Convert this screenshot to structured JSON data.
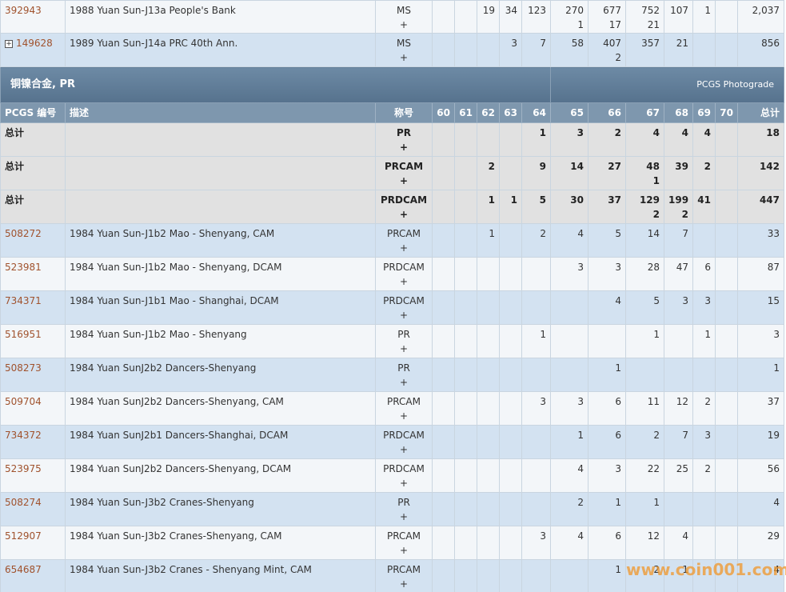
{
  "top_rows": [
    {
      "pcgs": "392943",
      "description": "1988 Yuan Sun-J13a People's Bank",
      "designation": "MS",
      "designation_plus": "+",
      "grades": [
        null,
        null,
        19,
        34,
        123,
        {
          "count": 270,
          "plus": 1
        },
        {
          "count": 677,
          "plus": 17
        },
        {
          "count": 752,
          "plus": 21
        },
        107,
        1,
        null,
        "2,037"
      ]
    },
    {
      "pcgs": "149628",
      "expandable": true,
      "description": "1989 Yuan Sun-J14a PRC 40th Ann.",
      "designation": "MS",
      "designation_plus": "+",
      "grades": [
        null,
        null,
        null,
        3,
        7,
        58,
        {
          "count": 407,
          "plus": 2
        },
        357,
        21,
        null,
        null,
        856
      ]
    }
  ],
  "section": {
    "title": "铜镍合金, PR",
    "link": "PCGS Photograde"
  },
  "header": [
    "PCGS 编号",
    "描述",
    "称号",
    "60",
    "61",
    "62",
    "63",
    "64",
    "65",
    "66",
    "67",
    "68",
    "69",
    "70",
    "总计"
  ],
  "rows": [
    {
      "pcgs": "总计",
      "total": true,
      "designation": "PR",
      "designation_plus": "+",
      "grades": [
        null,
        null,
        null,
        null,
        1,
        3,
        2,
        4,
        4,
        4,
        null,
        18
      ]
    },
    {
      "pcgs": "总计",
      "total": true,
      "designation": "PRCAM",
      "designation_plus": "+",
      "grades": [
        null,
        null,
        2,
        null,
        9,
        14,
        27,
        {
          "count": 48,
          "plus": 1
        },
        39,
        2,
        null,
        142
      ]
    },
    {
      "pcgs": "总计",
      "total": true,
      "designation": "PRDCAM",
      "designation_plus": "+",
      "grades": [
        null,
        null,
        1,
        1,
        5,
        30,
        37,
        {
          "count": 129,
          "plus": 2
        },
        {
          "count": 199,
          "plus": 2
        },
        41,
        null,
        447
      ]
    },
    {
      "pcgs": "508272",
      "description": "1984 Yuan Sun-J1b2 Mao - Shenyang, CAM",
      "designation": "PRCAM",
      "designation_plus": "+",
      "grades": [
        null,
        null,
        1,
        null,
        2,
        4,
        5,
        14,
        7,
        null,
        null,
        33
      ]
    },
    {
      "pcgs": "523981",
      "description": "1984 Yuan Sun-J1b2 Mao - Shenyang, DCAM",
      "designation": "PRDCAM",
      "designation_plus": "+",
      "grades": [
        null,
        null,
        null,
        null,
        null,
        3,
        3,
        28,
        47,
        6,
        null,
        87
      ]
    },
    {
      "pcgs": "734371",
      "description": "1984 Yuan Sun-J1b1 Mao - Shanghai, DCAM",
      "designation": "PRDCAM",
      "designation_plus": "+",
      "grades": [
        null,
        null,
        null,
        null,
        null,
        null,
        4,
        5,
        3,
        3,
        null,
        15
      ]
    },
    {
      "pcgs": "516951",
      "description": "1984 Yuan Sun-J1b2 Mao - Shenyang",
      "designation": "PR",
      "designation_plus": "+",
      "grades": [
        null,
        null,
        null,
        null,
        1,
        null,
        null,
        1,
        null,
        1,
        null,
        3
      ]
    },
    {
      "pcgs": "508273",
      "description": "1984 Yuan SunJ2b2 Dancers-Shenyang",
      "designation": "PR",
      "designation_plus": "+",
      "grades": [
        null,
        null,
        null,
        null,
        null,
        null,
        1,
        null,
        null,
        null,
        null,
        1
      ]
    },
    {
      "pcgs": "509704",
      "description": "1984 Yuan SunJ2b2 Dancers-Shenyang, CAM",
      "designation": "PRCAM",
      "designation_plus": "+",
      "grades": [
        null,
        null,
        null,
        null,
        3,
        3,
        6,
        11,
        12,
        2,
        null,
        37
      ]
    },
    {
      "pcgs": "734372",
      "description": "1984 Yuan SunJ2b1 Dancers-Shanghai, DCAM",
      "designation": "PRDCAM",
      "designation_plus": "+",
      "grades": [
        null,
        null,
        null,
        null,
        null,
        1,
        6,
        2,
        7,
        3,
        null,
        19
      ]
    },
    {
      "pcgs": "523975",
      "description": "1984 Yuan SunJ2b2 Dancers-Shenyang, DCAM",
      "designation": "PRDCAM",
      "designation_plus": "+",
      "grades": [
        null,
        null,
        null,
        null,
        null,
        4,
        3,
        22,
        25,
        2,
        null,
        56
      ]
    },
    {
      "pcgs": "508274",
      "description": "1984 Yuan Sun-J3b2 Cranes-Shenyang",
      "designation": "PR",
      "designation_plus": "+",
      "grades": [
        null,
        null,
        null,
        null,
        null,
        2,
        1,
        1,
        null,
        null,
        null,
        4
      ]
    },
    {
      "pcgs": "512907",
      "description": "1984 Yuan Sun-J3b2 Cranes-Shenyang, CAM",
      "designation": "PRCAM",
      "designation_plus": "+",
      "grades": [
        null,
        null,
        null,
        null,
        3,
        4,
        6,
        12,
        4,
        null,
        null,
        29
      ]
    },
    {
      "pcgs": "654687",
      "description": "1984 Yuan Sun-J3b2 Cranes - Shenyang Mint, CAM",
      "designation": "PRCAM",
      "designation_plus": "+",
      "grades": [
        null,
        null,
        null,
        null,
        null,
        null,
        1,
        2,
        1,
        null,
        null,
        4
      ]
    }
  ],
  "watermark": "www.coin001.com"
}
